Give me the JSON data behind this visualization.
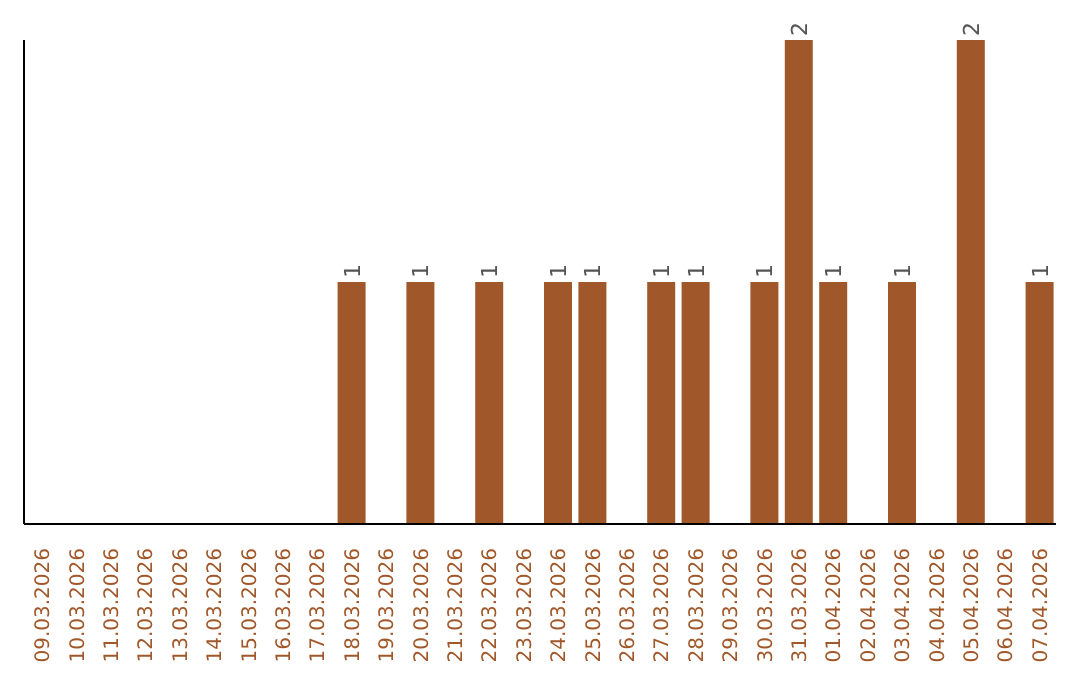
{
  "chart_data": {
    "type": "bar",
    "categories": [
      "09.03.2026",
      "10.03.2026",
      "11.03.2026",
      "12.03.2026",
      "13.03.2026",
      "14.03.2026",
      "15.03.2026",
      "16.03.2026",
      "17.03.2026",
      "18.03.2026",
      "19.03.2026",
      "20.03.2026",
      "21.03.2026",
      "22.03.2026",
      "23.03.2026",
      "24.03.2026",
      "25.03.2026",
      "26.03.2026",
      "27.03.2026",
      "28.03.2026",
      "29.03.2026",
      "30.03.2026",
      "31.03.2026",
      "01.04.2026",
      "02.04.2026",
      "03.04.2026",
      "04.04.2026",
      "05.04.2026",
      "06.04.2026",
      "07.04.2026"
    ],
    "values": [
      0,
      0,
      0,
      0,
      0,
      0,
      0,
      0,
      0,
      1,
      0,
      1,
      0,
      1,
      0,
      1,
      1,
      0,
      1,
      1,
      0,
      1,
      2,
      1,
      0,
      1,
      0,
      2,
      0,
      1
    ],
    "value_labels": [
      null,
      null,
      null,
      null,
      null,
      null,
      null,
      null,
      null,
      "1",
      null,
      "1",
      null,
      "1",
      null,
      "1",
      "1",
      null,
      "1",
      "1",
      null,
      "1",
      "2",
      "1",
      null,
      "1",
      null,
      "2",
      null,
      "1"
    ],
    "color": "#a0582a",
    "tick_labels": "x"
  }
}
